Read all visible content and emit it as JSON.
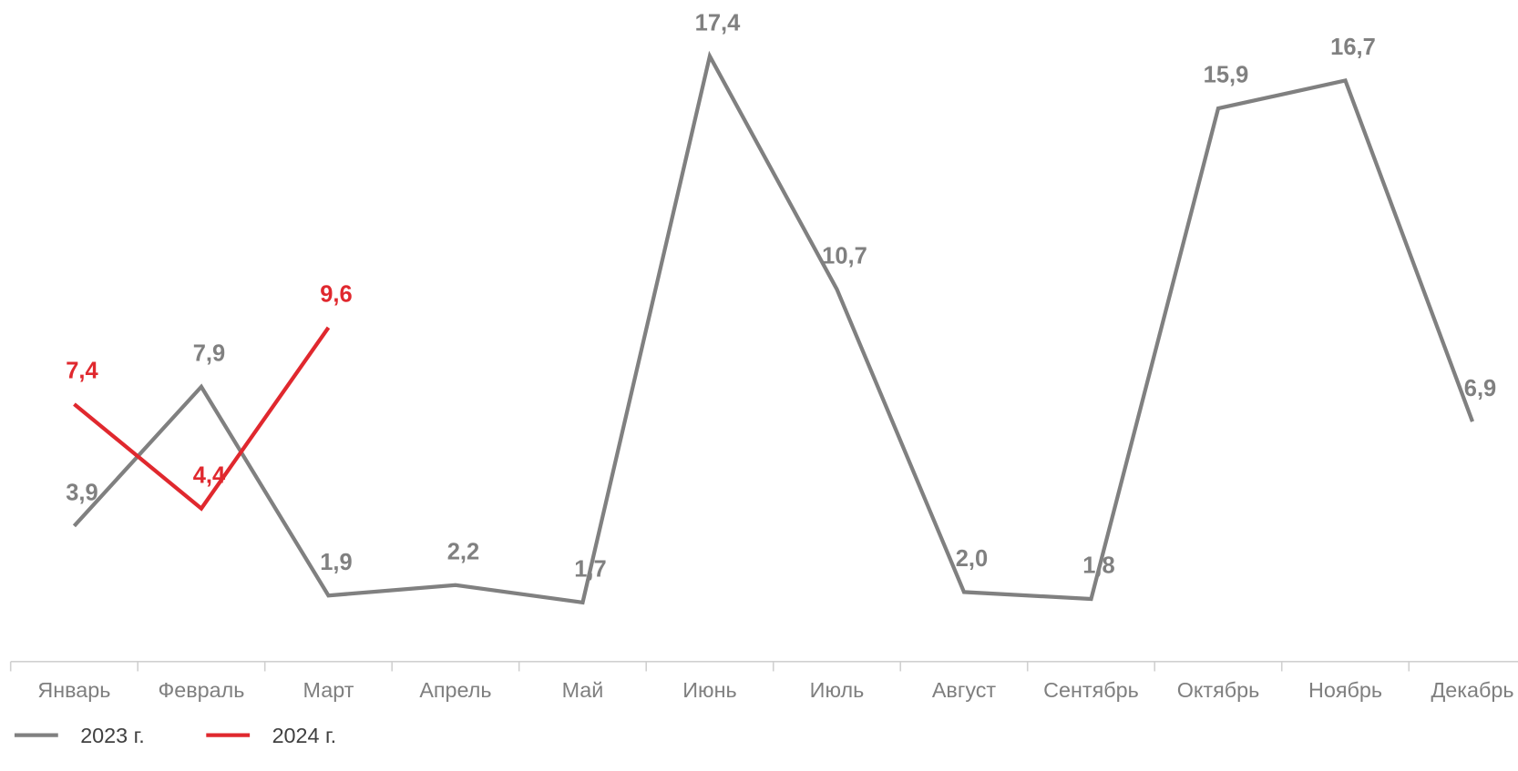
{
  "chart_data": {
    "type": "line",
    "categories": [
      "Январь",
      "Февраль",
      "Март",
      "Апрель",
      "Май",
      "Июнь",
      "Июль",
      "Август",
      "Сентябрь",
      "Октябрь",
      "Ноябрь",
      "Декабрь"
    ],
    "series": [
      {
        "name": "2023 г.",
        "color": "#808080",
        "values": [
          3.9,
          7.9,
          1.9,
          2.2,
          1.7,
          17.4,
          10.7,
          2.0,
          1.8,
          15.9,
          16.7,
          6.9
        ],
        "value_labels": [
          "3,9",
          "7,9",
          "1,9",
          "2,2",
          "1,7",
          "17,4",
          "10,7",
          "2,0",
          "1,8",
          "15,9",
          "16,7",
          "6,9"
        ]
      },
      {
        "name": "2024 г.",
        "color": "#e0282e",
        "values": [
          7.4,
          4.4,
          9.6,
          null,
          null,
          null,
          null,
          null,
          null,
          null,
          null,
          null
        ],
        "value_labels": [
          "7,4",
          "4,4",
          "9,6",
          null,
          null,
          null,
          null,
          null,
          null,
          null,
          null,
          null
        ]
      }
    ]
  }
}
